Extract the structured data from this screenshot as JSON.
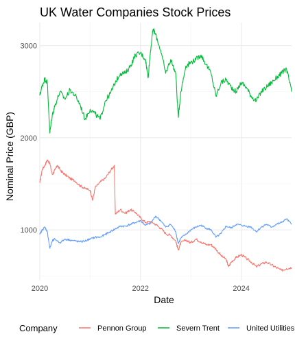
{
  "chart_data": {
    "type": "line",
    "title": "UK Water Companies Stock Prices",
    "xlabel": "Date",
    "ylabel": "Nominal Price (GBP)",
    "x_ticks": [
      "2020",
      "2022",
      "2024"
    ],
    "y_ticks": [
      1000,
      2000,
      3000
    ],
    "xlim": [
      2020.0,
      2025.0
    ],
    "ylim": [
      450,
      3250
    ],
    "grid": true,
    "legend": {
      "title": "Company",
      "position": "bottom"
    },
    "series": [
      {
        "name": "Pennon Group",
        "color": "#F8766D",
        "points": [
          [
            2020.0,
            1510
          ],
          [
            2020.05,
            1660
          ],
          [
            2020.1,
            1700
          ],
          [
            2020.15,
            1760
          ],
          [
            2020.2,
            1720
          ],
          [
            2020.25,
            1600
          ],
          [
            2020.3,
            1650
          ],
          [
            2020.35,
            1700
          ],
          [
            2020.42,
            1640
          ],
          [
            2020.5,
            1600
          ],
          [
            2020.6,
            1560
          ],
          [
            2020.7,
            1530
          ],
          [
            2020.8,
            1480
          ],
          [
            2020.9,
            1450
          ],
          [
            2021.0,
            1430
          ],
          [
            2021.05,
            1320
          ],
          [
            2021.1,
            1460
          ],
          [
            2021.2,
            1520
          ],
          [
            2021.3,
            1560
          ],
          [
            2021.4,
            1640
          ],
          [
            2021.48,
            1700
          ],
          [
            2021.5,
            1170
          ],
          [
            2021.6,
            1220
          ],
          [
            2021.7,
            1180
          ],
          [
            2021.8,
            1220
          ],
          [
            2021.9,
            1190
          ],
          [
            2022.0,
            1130
          ],
          [
            2022.1,
            1080
          ],
          [
            2022.2,
            1090
          ],
          [
            2022.3,
            1060
          ],
          [
            2022.4,
            1020
          ],
          [
            2022.5,
            960
          ],
          [
            2022.6,
            940
          ],
          [
            2022.7,
            880
          ],
          [
            2022.75,
            780
          ],
          [
            2022.8,
            860
          ],
          [
            2022.9,
            890
          ],
          [
            2023.0,
            860
          ],
          [
            2023.1,
            900
          ],
          [
            2023.2,
            870
          ],
          [
            2023.3,
            840
          ],
          [
            2023.4,
            840
          ],
          [
            2023.5,
            790
          ],
          [
            2023.6,
            720
          ],
          [
            2023.7,
            680
          ],
          [
            2023.75,
            600
          ],
          [
            2023.8,
            650
          ],
          [
            2023.9,
            700
          ],
          [
            2024.0,
            730
          ],
          [
            2024.1,
            690
          ],
          [
            2024.2,
            650
          ],
          [
            2024.3,
            600
          ],
          [
            2024.4,
            630
          ],
          [
            2024.5,
            650
          ],
          [
            2024.6,
            620
          ],
          [
            2024.7,
            590
          ],
          [
            2024.8,
            560
          ],
          [
            2024.9,
            580
          ],
          [
            2025.0,
            590
          ]
        ]
      },
      {
        "name": "Severn Trent",
        "color": "#00BA38",
        "points": [
          [
            2020.0,
            2460
          ],
          [
            2020.05,
            2570
          ],
          [
            2020.1,
            2640
          ],
          [
            2020.15,
            2600
          ],
          [
            2020.2,
            2050
          ],
          [
            2020.25,
            2250
          ],
          [
            2020.3,
            2350
          ],
          [
            2020.4,
            2500
          ],
          [
            2020.5,
            2420
          ],
          [
            2020.6,
            2520
          ],
          [
            2020.7,
            2460
          ],
          [
            2020.8,
            2360
          ],
          [
            2020.9,
            2200
          ],
          [
            2021.0,
            2310
          ],
          [
            2021.1,
            2260
          ],
          [
            2021.2,
            2200
          ],
          [
            2021.3,
            2400
          ],
          [
            2021.4,
            2480
          ],
          [
            2021.5,
            2600
          ],
          [
            2021.6,
            2700
          ],
          [
            2021.7,
            2700
          ],
          [
            2021.8,
            2780
          ],
          [
            2021.9,
            2900
          ],
          [
            2022.0,
            2920
          ],
          [
            2022.1,
            2850
          ],
          [
            2022.15,
            2650
          ],
          [
            2022.2,
            2950
          ],
          [
            2022.25,
            3180
          ],
          [
            2022.3,
            3120
          ],
          [
            2022.4,
            2950
          ],
          [
            2022.5,
            2700
          ],
          [
            2022.6,
            2850
          ],
          [
            2022.7,
            2700
          ],
          [
            2022.75,
            2220
          ],
          [
            2022.8,
            2500
          ],
          [
            2022.9,
            2780
          ],
          [
            2023.0,
            2820
          ],
          [
            2023.1,
            2850
          ],
          [
            2023.2,
            2900
          ],
          [
            2023.3,
            2800
          ],
          [
            2023.4,
            2700
          ],
          [
            2023.5,
            2450
          ],
          [
            2023.6,
            2600
          ],
          [
            2023.7,
            2630
          ],
          [
            2023.8,
            2550
          ],
          [
            2023.9,
            2500
          ],
          [
            2024.0,
            2600
          ],
          [
            2024.1,
            2550
          ],
          [
            2024.2,
            2450
          ],
          [
            2024.3,
            2400
          ],
          [
            2024.4,
            2500
          ],
          [
            2024.5,
            2550
          ],
          [
            2024.6,
            2600
          ],
          [
            2024.7,
            2650
          ],
          [
            2024.8,
            2700
          ],
          [
            2024.9,
            2750
          ],
          [
            2025.0,
            2500
          ]
        ]
      },
      {
        "name": "United Utilities",
        "color": "#619CFF",
        "points": [
          [
            2020.0,
            950
          ],
          [
            2020.05,
            1000
          ],
          [
            2020.1,
            1030
          ],
          [
            2020.15,
            980
          ],
          [
            2020.2,
            800
          ],
          [
            2020.25,
            880
          ],
          [
            2020.3,
            900
          ],
          [
            2020.4,
            860
          ],
          [
            2020.5,
            900
          ],
          [
            2020.6,
            890
          ],
          [
            2020.7,
            880
          ],
          [
            2020.8,
            870
          ],
          [
            2020.9,
            880
          ],
          [
            2021.0,
            900
          ],
          [
            2021.1,
            920
          ],
          [
            2021.2,
            920
          ],
          [
            2021.3,
            950
          ],
          [
            2021.4,
            980
          ],
          [
            2021.5,
            1010
          ],
          [
            2021.6,
            1040
          ],
          [
            2021.7,
            1040
          ],
          [
            2021.8,
            1060
          ],
          [
            2021.9,
            1080
          ],
          [
            2022.0,
            1100
          ],
          [
            2022.1,
            1050
          ],
          [
            2022.2,
            1070
          ],
          [
            2022.3,
            1150
          ],
          [
            2022.4,
            1100
          ],
          [
            2022.5,
            1030
          ],
          [
            2022.6,
            1060
          ],
          [
            2022.7,
            980
          ],
          [
            2022.75,
            850
          ],
          [
            2022.8,
            910
          ],
          [
            2022.9,
            950
          ],
          [
            2023.0,
            1000
          ],
          [
            2023.1,
            1030
          ],
          [
            2023.2,
            1050
          ],
          [
            2023.3,
            1020
          ],
          [
            2023.4,
            1000
          ],
          [
            2023.5,
            920
          ],
          [
            2023.6,
            960
          ],
          [
            2023.7,
            1040
          ],
          [
            2023.8,
            1020
          ],
          [
            2023.9,
            1060
          ],
          [
            2024.0,
            1050
          ],
          [
            2024.1,
            1040
          ],
          [
            2024.2,
            1030
          ],
          [
            2024.3,
            980
          ],
          [
            2024.4,
            1030
          ],
          [
            2024.5,
            1060
          ],
          [
            2024.6,
            1030
          ],
          [
            2024.7,
            1060
          ],
          [
            2024.8,
            1080
          ],
          [
            2024.9,
            1120
          ],
          [
            2025.0,
            1060
          ]
        ]
      }
    ]
  }
}
